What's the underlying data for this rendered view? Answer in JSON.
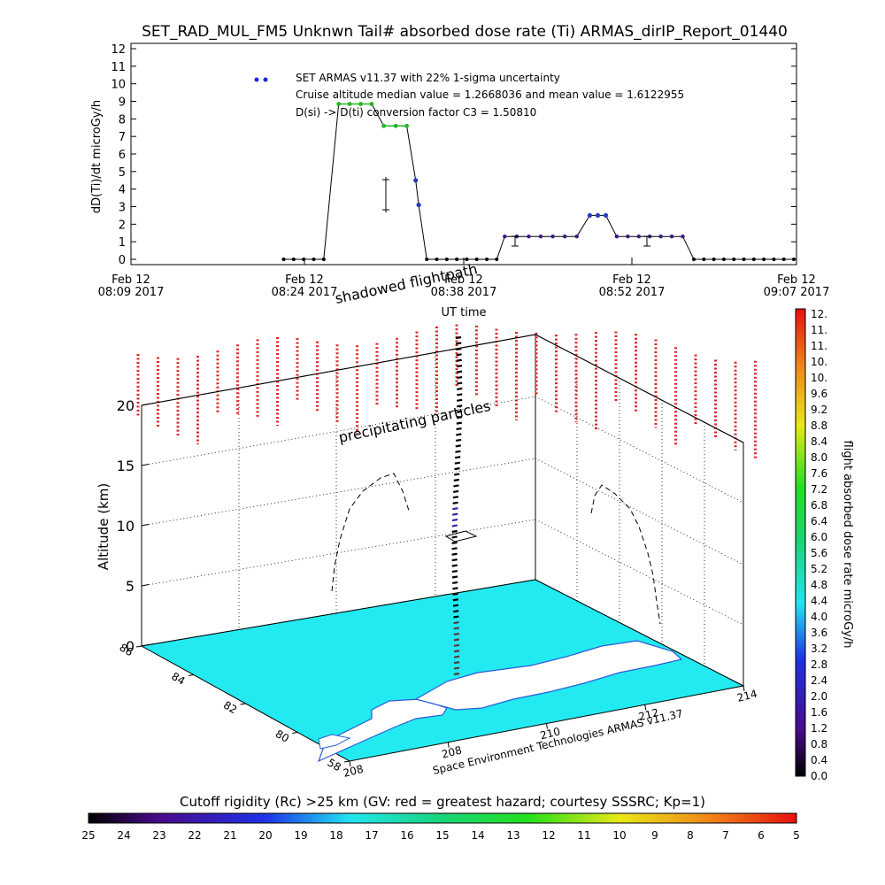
{
  "title": "SET_RAD_MUL_FM5 Unknwn Tail#  absorbed dose rate (Ti) ARMAS_dirIP_Report_01440",
  "colors": {
    "low_point": "#000000",
    "mid_point": "#3c1a7a",
    "high_point": "#2838c8",
    "peak_point": "#22b822",
    "water": "#22eaf0",
    "coast": "#2a5cd8",
    "cutoff_marks": "#e02020"
  },
  "chart_data": [
    {
      "type": "line",
      "ylabel": "dD(Ti)/dt microGy/h",
      "xlabel": "UT time",
      "ylim": [
        0,
        12
      ],
      "y_ticks": [
        "0",
        "1",
        "2",
        "3",
        "4",
        "5",
        "6",
        "7",
        "8",
        "9",
        "10",
        "11",
        "12"
      ],
      "x_ticks": [
        {
          "line1": "Feb 12",
          "line2": "08:09 2017"
        },
        {
          "line1": "Feb 12",
          "line2": "08:24 2017"
        },
        {
          "line1": "Feb 12",
          "line2": "08:38 2017"
        },
        {
          "line1": "Feb 12",
          "line2": "08:52 2017"
        },
        {
          "line1": "Feb 12",
          "line2": "09:07 2017"
        }
      ],
      "x_minutes_range": [
        489,
        547
      ],
      "legend": {
        "series": "SET ARMAS v11.37 with 22% 1-sigma uncertainty",
        "line2": "Cruise altitude median value = 1.2668036 and mean value = 1.6122955",
        "line3": "D(si) -> D(ti) conversion factor C3 = 1.50810",
        "placement": "top-center"
      },
      "series": [
        {
          "points": [
            {
              "t": 504.0,
              "v": 0
            },
            {
              "t": 505.0,
              "v": 0
            },
            {
              "t": 506.0,
              "v": 0
            },
            {
              "t": 507.0,
              "v": 0
            },
            {
              "t": 508.0,
              "v": 0
            },
            {
              "t": 509.5,
              "v": 8.85
            },
            {
              "t": 510.6,
              "v": 8.85
            },
            {
              "t": 511.7,
              "v": 8.85
            },
            {
              "t": 512.8,
              "v": 8.85
            },
            {
              "t": 514.0,
              "v": 7.6
            },
            {
              "t": 515.2,
              "v": 7.6
            },
            {
              "t": 516.3,
              "v": 7.6
            },
            {
              "t": 517.2,
              "v": 4.5
            },
            {
              "t": 517.5,
              "v": 3.1
            },
            {
              "t": 518.3,
              "v": 0
            },
            {
              "t": 519.3,
              "v": 0
            },
            {
              "t": 520.3,
              "v": 0
            },
            {
              "t": 521.3,
              "v": 0
            },
            {
              "t": 522.3,
              "v": 0
            },
            {
              "t": 523.3,
              "v": 0
            },
            {
              "t": 524.3,
              "v": 0
            },
            {
              "t": 525.3,
              "v": 0
            },
            {
              "t": 526.1,
              "v": 1.3
            },
            {
              "t": 527.3,
              "v": 1.3
            },
            {
              "t": 528.5,
              "v": 1.3
            },
            {
              "t": 529.7,
              "v": 1.3
            },
            {
              "t": 530.9,
              "v": 1.3
            },
            {
              "t": 532.1,
              "v": 1.3
            },
            {
              "t": 533.3,
              "v": 1.3
            },
            {
              "t": 534.6,
              "v": 2.5
            },
            {
              "t": 535.4,
              "v": 2.5
            },
            {
              "t": 536.2,
              "v": 2.5
            },
            {
              "t": 537.3,
              "v": 1.3
            },
            {
              "t": 538.4,
              "v": 1.3
            },
            {
              "t": 539.5,
              "v": 1.3
            },
            {
              "t": 540.6,
              "v": 1.3
            },
            {
              "t": 541.7,
              "v": 1.3
            },
            {
              "t": 542.8,
              "v": 1.3
            },
            {
              "t": 543.9,
              "v": 1.3
            },
            {
              "t": 545.0,
              "v": 0
            },
            {
              "t": 546.0,
              "v": 0
            },
            {
              "t": 547.0,
              "v": 0
            },
            {
              "t": 548.0,
              "v": 0
            },
            {
              "t": 549.0,
              "v": 0
            },
            {
              "t": 550.0,
              "v": 0
            },
            {
              "t": 551.0,
              "v": 0
            },
            {
              "t": 552.0,
              "v": 0
            },
            {
              "t": 553.0,
              "v": 0
            },
            {
              "t": 554.0,
              "v": 0
            },
            {
              "t": 555.0,
              "v": 0
            }
          ]
        }
      ]
    },
    {
      "type": "scatter",
      "title": "",
      "zlabel": "Altitude (km)",
      "z_ticks": [
        "0",
        "5",
        "10",
        "15",
        "20"
      ],
      "lat_ticks": [
        "86",
        "84",
        "82",
        "80",
        "58"
      ],
      "lon_ticks": [
        "208",
        "208",
        "210",
        "212",
        "214"
      ],
      "annotations": [
        "shadowed flightpath",
        "precipitating particles"
      ],
      "credit": "Space Environment Technologies ARMAS v11.37"
    },
    {
      "type": "heatmap",
      "colorbar_label": "flight absorbed dose rate microGy/h",
      "colorbar_ticks": [
        "12.",
        "11.",
        "11.",
        "10.",
        "10.",
        "9.6",
        "9.2",
        "8.8",
        "8.4",
        "8.0",
        "7.6",
        "7.2",
        "6.8",
        "6.4",
        "6.0",
        "5.6",
        "5.2",
        "4.8",
        "4.4",
        "4.0",
        "3.6",
        "3.2",
        "2.8",
        "2.4",
        "2.0",
        "1.6",
        "1.2",
        "0.8",
        "0.4",
        "0.0"
      ]
    },
    {
      "type": "heatmap",
      "colorbar_label": "Cutoff rigidity (Rc) >25 km (GV: red = greatest hazard; courtesy SSSRC; Kp=1)",
      "colorbar_ticks": [
        "25",
        "24",
        "23",
        "22",
        "21",
        "20",
        "19",
        "18",
        "17",
        "16",
        "15",
        "14",
        "13",
        "12",
        "11",
        "10",
        "9",
        "8",
        "7",
        "6",
        "5"
      ]
    }
  ]
}
